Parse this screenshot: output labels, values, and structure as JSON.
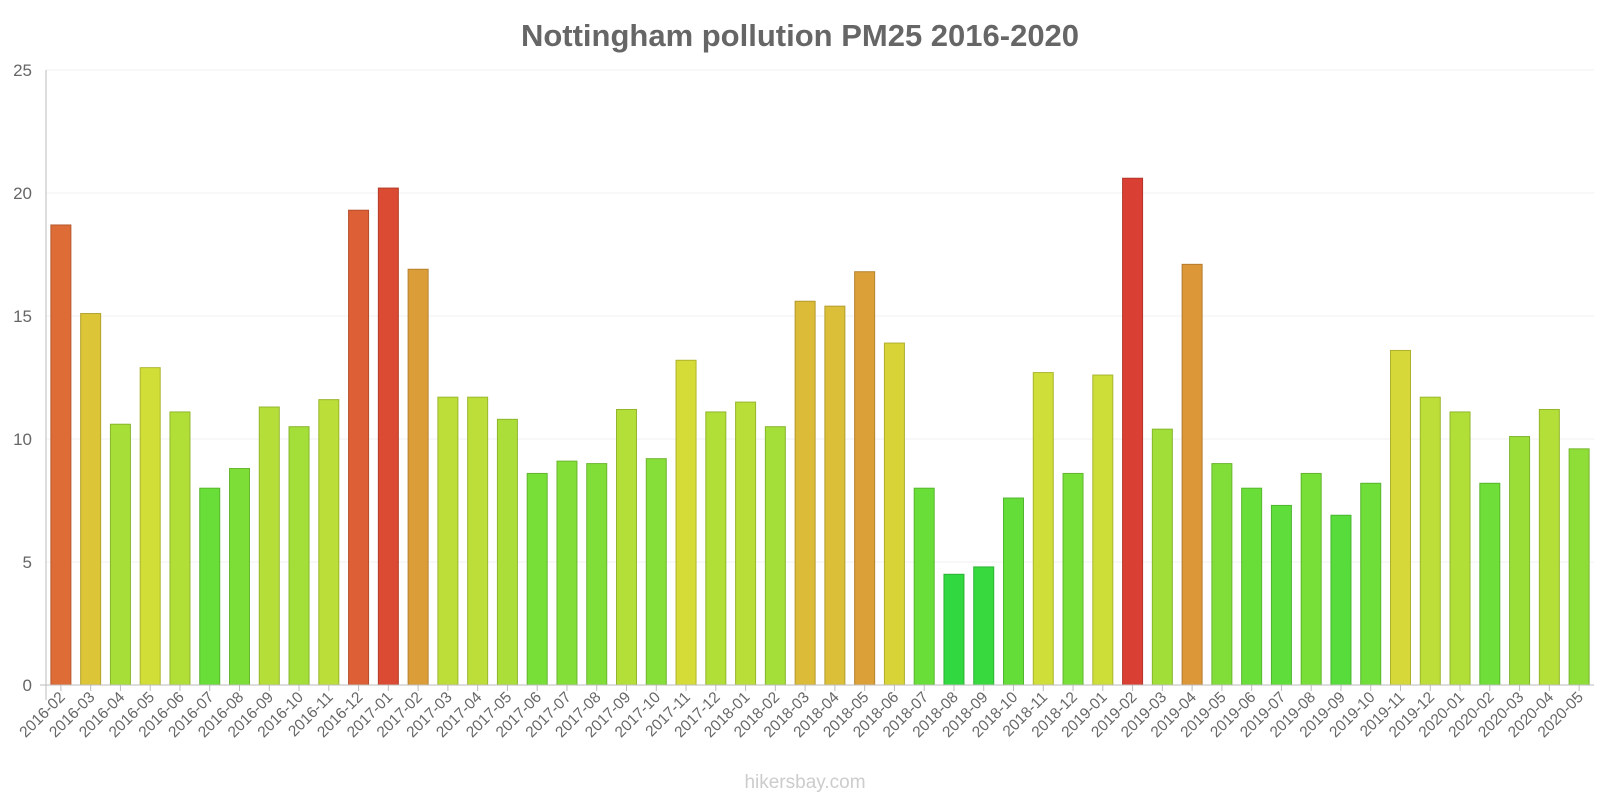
{
  "chart_data": {
    "type": "bar",
    "title": "Nottingham pollution PM25 2016-2020",
    "xlabel": "",
    "ylabel": "",
    "ylim": [
      0,
      25
    ],
    "yticks": [
      0,
      5,
      10,
      15,
      20,
      25
    ],
    "grid": true,
    "legend": "none",
    "credit": "hikersbay.com",
    "categories": [
      "2016-02",
      "2016-03",
      "2016-04",
      "2016-05",
      "2016-06",
      "2016-07",
      "2016-08",
      "2016-09",
      "2016-10",
      "2016-11",
      "2016-12",
      "2017-01",
      "2017-02",
      "2017-03",
      "2017-04",
      "2017-05",
      "2017-06",
      "2017-07",
      "2017-08",
      "2017-09",
      "2017-10",
      "2017-11",
      "2017-12",
      "2018-01",
      "2018-02",
      "2018-03",
      "2018-04",
      "2018-05",
      "2018-06",
      "2018-07",
      "2018-08",
      "2018-09",
      "2018-10",
      "2018-11",
      "2018-12",
      "2019-01",
      "2019-02",
      "2019-03",
      "2019-04",
      "2019-05",
      "2019-06",
      "2019-07",
      "2019-08",
      "2019-09",
      "2019-10",
      "2019-11",
      "2019-12",
      "2020-01",
      "2020-02",
      "2020-03",
      "2020-04",
      "2020-05"
    ],
    "values": [
      18.7,
      15.1,
      10.6,
      12.9,
      11.1,
      8.0,
      8.8,
      11.3,
      10.5,
      11.6,
      19.3,
      20.2,
      16.9,
      11.7,
      11.7,
      10.8,
      8.6,
      9.1,
      9.0,
      11.2,
      9.2,
      13.2,
      11.1,
      11.5,
      10.5,
      15.6,
      15.4,
      16.8,
      13.9,
      8.0,
      4.5,
      4.8,
      7.6,
      12.7,
      8.6,
      12.6,
      20.6,
      10.4,
      17.1,
      9.0,
      8.0,
      7.3,
      8.6,
      6.9,
      8.2,
      13.6,
      11.7,
      11.1,
      8.2,
      10.1,
      11.2,
      9.6
    ]
  }
}
